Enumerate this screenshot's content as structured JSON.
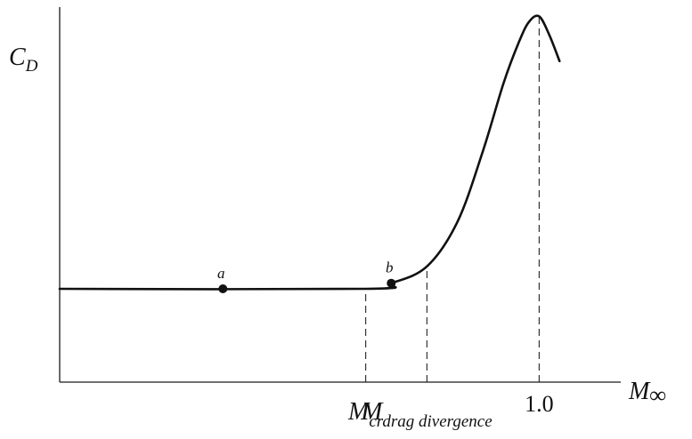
{
  "chart_data": {
    "type": "line",
    "title": "",
    "ylabel": {
      "main": "C",
      "sub": "D"
    },
    "xlabel": {
      "main": "M",
      "sub": "∞"
    },
    "xlim": [
      0,
      1.1
    ],
    "ylim": [
      0,
      1
    ],
    "grid": false,
    "x_tick_labels": [
      {
        "x": 0.6,
        "main": "M",
        "sub": "cr"
      },
      {
        "x": 0.72,
        "main": "M",
        "sub": "drag divergence"
      },
      {
        "x": 0.94,
        "main": "1.0",
        "sub": ""
      }
    ],
    "series": [
      {
        "x": [
          0.0,
          0.6,
          0.65,
          0.72,
          0.78,
          0.83,
          0.87,
          0.9,
          0.92,
          0.94,
          0.96,
          0.98
        ],
        "y": [
          0.25,
          0.25,
          0.265,
          0.31,
          0.43,
          0.62,
          0.8,
          0.91,
          0.965,
          0.98,
          0.93,
          0.86
        ]
      }
    ],
    "points": [
      {
        "label": "a",
        "x": 0.32,
        "y": 0.25
      },
      {
        "label": "b",
        "x": 0.65,
        "y": 0.265
      }
    ],
    "reference_lines": [
      {
        "x": 0.6,
        "from": 0,
        "to": 0.25
      },
      {
        "x": 0.72,
        "from": 0,
        "to": 0.31
      },
      {
        "x": 0.94,
        "from": 0,
        "to": 0.98
      }
    ]
  }
}
